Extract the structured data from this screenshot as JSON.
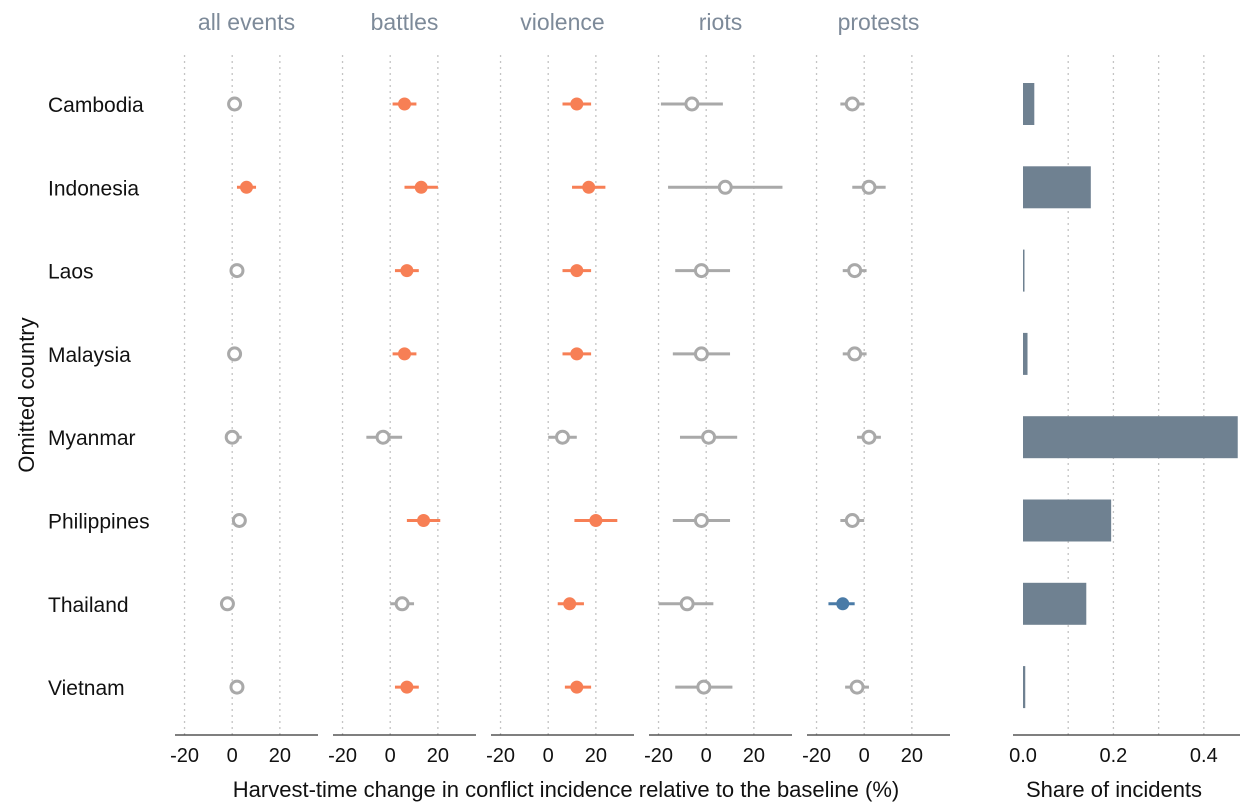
{
  "chart_data": [
    {
      "type": "scatter",
      "subtype": "dot-and-whisker, faceted",
      "ylabel": "Omitted country",
      "xlabel": "Harvest-time change in conflict incidence relative to the baseline (%)",
      "xlim": [
        -24,
        36
      ],
      "xticks": [
        "-20",
        "0",
        "20"
      ],
      "xtick_values": [
        -20,
        0,
        20
      ],
      "grid": "vertical dotted",
      "countries": [
        "Cambodia",
        "Indonesia",
        "Laos",
        "Malaysia",
        "Myanmar",
        "Philippines",
        "Thailand",
        "Vietnam"
      ],
      "colors": {
        "positive_significant": "#f77f55",
        "negative_significant": "#4a7ba7",
        "not_significant": "#a9a9a9"
      },
      "panels": [
        {
          "title": "all events",
          "points": [
            {
              "country": "Cambodia",
              "estimate": 1,
              "lo": 1,
              "hi": 1,
              "significance": "none"
            },
            {
              "country": "Indonesia",
              "estimate": 6,
              "lo": 2,
              "hi": 10,
              "significance": "positive"
            },
            {
              "country": "Laos",
              "estimate": 2,
              "lo": 2,
              "hi": 2,
              "significance": "none"
            },
            {
              "country": "Malaysia",
              "estimate": 1,
              "lo": 1,
              "hi": 1,
              "significance": "none"
            },
            {
              "country": "Myanmar",
              "estimate": 0,
              "lo": -3,
              "hi": 4,
              "significance": "none"
            },
            {
              "country": "Philippines",
              "estimate": 3,
              "lo": 1,
              "hi": 5,
              "significance": "none"
            },
            {
              "country": "Thailand",
              "estimate": -2,
              "lo": -2,
              "hi": -2,
              "significance": "none"
            },
            {
              "country": "Vietnam",
              "estimate": 2,
              "lo": 2,
              "hi": 2,
              "significance": "none"
            }
          ]
        },
        {
          "title": "battles",
          "points": [
            {
              "country": "Cambodia",
              "estimate": 6,
              "lo": 1,
              "hi": 11,
              "significance": "positive"
            },
            {
              "country": "Indonesia",
              "estimate": 13,
              "lo": 6,
              "hi": 20,
              "significance": "positive"
            },
            {
              "country": "Laos",
              "estimate": 7,
              "lo": 2,
              "hi": 12,
              "significance": "positive"
            },
            {
              "country": "Malaysia",
              "estimate": 6,
              "lo": 1,
              "hi": 11,
              "significance": "positive"
            },
            {
              "country": "Myanmar",
              "estimate": -3,
              "lo": -10,
              "hi": 5,
              "significance": "none"
            },
            {
              "country": "Philippines",
              "estimate": 14,
              "lo": 7,
              "hi": 21,
              "significance": "positive"
            },
            {
              "country": "Thailand",
              "estimate": 5,
              "lo": 0,
              "hi": 10,
              "significance": "none"
            },
            {
              "country": "Vietnam",
              "estimate": 7,
              "lo": 2,
              "hi": 12,
              "significance": "positive"
            }
          ]
        },
        {
          "title": "violence",
          "points": [
            {
              "country": "Cambodia",
              "estimate": 12,
              "lo": 6,
              "hi": 18,
              "significance": "positive"
            },
            {
              "country": "Indonesia",
              "estimate": 17,
              "lo": 10,
              "hi": 24,
              "significance": "positive"
            },
            {
              "country": "Laos",
              "estimate": 12,
              "lo": 6,
              "hi": 18,
              "significance": "positive"
            },
            {
              "country": "Malaysia",
              "estimate": 12,
              "lo": 6,
              "hi": 18,
              "significance": "positive"
            },
            {
              "country": "Myanmar",
              "estimate": 6,
              "lo": 0,
              "hi": 12,
              "significance": "none"
            },
            {
              "country": "Philippines",
              "estimate": 20,
              "lo": 11,
              "hi": 29,
              "significance": "positive"
            },
            {
              "country": "Thailand",
              "estimate": 9,
              "lo": 4,
              "hi": 15,
              "significance": "positive"
            },
            {
              "country": "Vietnam",
              "estimate": 12,
              "lo": 7,
              "hi": 18,
              "significance": "positive"
            }
          ]
        },
        {
          "title": "riots",
          "points": [
            {
              "country": "Cambodia",
              "estimate": -6,
              "lo": -19,
              "hi": 7,
              "significance": "none"
            },
            {
              "country": "Indonesia",
              "estimate": 8,
              "lo": -16,
              "hi": 32,
              "significance": "none"
            },
            {
              "country": "Laos",
              "estimate": -2,
              "lo": -13,
              "hi": 10,
              "significance": "none"
            },
            {
              "country": "Malaysia",
              "estimate": -2,
              "lo": -14,
              "hi": 10,
              "significance": "none"
            },
            {
              "country": "Myanmar",
              "estimate": 1,
              "lo": -11,
              "hi": 13,
              "significance": "none"
            },
            {
              "country": "Philippines",
              "estimate": -2,
              "lo": -14,
              "hi": 10,
              "significance": "none"
            },
            {
              "country": "Thailand",
              "estimate": -8,
              "lo": -20,
              "hi": 3,
              "significance": "none"
            },
            {
              "country": "Vietnam",
              "estimate": -1,
              "lo": -13,
              "hi": 11,
              "significance": "none"
            }
          ]
        },
        {
          "title": "protests",
          "points": [
            {
              "country": "Cambodia",
              "estimate": -5,
              "lo": -10,
              "hi": 0,
              "significance": "none"
            },
            {
              "country": "Indonesia",
              "estimate": 2,
              "lo": -5,
              "hi": 9,
              "significance": "none"
            },
            {
              "country": "Laos",
              "estimate": -4,
              "lo": -9,
              "hi": 1,
              "significance": "none"
            },
            {
              "country": "Malaysia",
              "estimate": -4,
              "lo": -9,
              "hi": 1,
              "significance": "none"
            },
            {
              "country": "Myanmar",
              "estimate": 2,
              "lo": -3,
              "hi": 7,
              "significance": "none"
            },
            {
              "country": "Philippines",
              "estimate": -5,
              "lo": -10,
              "hi": 0,
              "significance": "none"
            },
            {
              "country": "Thailand",
              "estimate": -9,
              "lo": -15,
              "hi": -4,
              "significance": "negative"
            },
            {
              "country": "Vietnam",
              "estimate": -3,
              "lo": -8,
              "hi": 2,
              "significance": "none"
            }
          ]
        }
      ]
    },
    {
      "type": "bar",
      "orientation": "horizontal",
      "xlabel": "Share of incidents",
      "xlim": [
        0,
        0.48
      ],
      "xticks": [
        "0.0",
        "0.2",
        "0.4"
      ],
      "xtick_values": [
        0,
        0.2,
        0.4
      ],
      "grid": "vertical dotted",
      "color": "#6f8191",
      "categories": [
        "Cambodia",
        "Indonesia",
        "Laos",
        "Malaysia",
        "Myanmar",
        "Philippines",
        "Thailand",
        "Vietnam"
      ],
      "values": [
        0.025,
        0.15,
        0.002,
        0.01,
        0.475,
        0.195,
        0.14,
        0.005
      ]
    }
  ]
}
